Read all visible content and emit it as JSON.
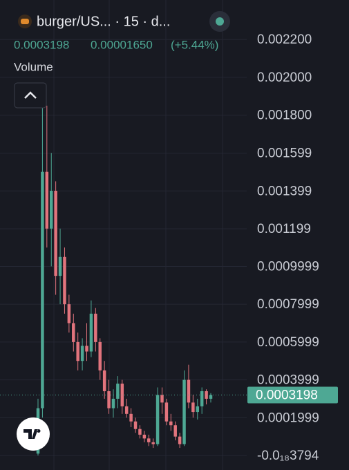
{
  "header": {
    "symbol": "burger/US... · 15 · d...",
    "change": "0.00001650",
    "change_pct": "(+5.44%)",
    "indicator": "Volume"
  },
  "chart_data": {
    "type": "candlestick",
    "last_price": 0.0003198,
    "up_color": "#4ea894",
    "down_color": "#e2747d",
    "grid": true,
    "ylim": [
      -7.68e-05,
      0.002409
    ],
    "yticks": [
      {
        "value": 0.0022,
        "label": "0.002200"
      },
      {
        "value": 0.002,
        "label": "0.002000"
      },
      {
        "value": 0.0018,
        "label": "0.001800"
      },
      0.001599,
      0.001399,
      0.001199,
      0.0009999,
      0.0007999,
      0.0005999,
      0.0003999,
      0.0001999,
      {
        "value": -3.794e-19,
        "label": "-0.0₁₈3794"
      }
    ],
    "open": [
      1e-05,
      0.00025,
      0.0015,
      0.0012,
      0.0014,
      0.00095,
      0.00105,
      0.0008,
      0.0007,
      0.0006,
      0.0005,
      0.00058,
      0.00055,
      0.00075,
      0.0006,
      0.00045,
      0.00034,
      0.00025,
      0.0003,
      0.00038,
      0.00026,
      0.00022,
      0.00018,
      0.00014,
      0.00011,
      9e-05,
      7e-05,
      6e-05,
      0.00032,
      0.00028,
      0.00018,
      0.00016,
      0.0001,
      6e-05,
      0.0004,
      0.00028,
      0.00023,
      0.00026,
      0.00034,
      0.0003
    ],
    "high": [
      0.0003,
      0.0019,
      0.00185,
      0.0016,
      0.00145,
      0.0012,
      0.0011,
      0.00085,
      0.00075,
      0.00065,
      0.00062,
      0.0007,
      0.00082,
      0.00078,
      0.00062,
      0.0005,
      0.0004,
      0.00035,
      0.00042,
      0.0004,
      0.0003,
      0.00025,
      0.0002,
      0.00016,
      0.00013,
      0.00011,
      9e-05,
      0.00036,
      0.00036,
      0.0003,
      0.00022,
      0.00018,
      0.00012,
      0.00045,
      0.00048,
      0.00032,
      0.0003,
      0.00036,
      0.00035,
      0.00033
    ],
    "low": [
      0,
      0.0002,
      0.0011,
      0.001,
      0.00085,
      0.0008,
      0.00075,
      0.00065,
      0.00055,
      0.00045,
      0.00045,
      0.0005,
      0.00052,
      0.00055,
      0.0004,
      0.0003,
      0.00022,
      0.0002,
      0.00025,
      0.00022,
      0.0002,
      0.00015,
      0.00012,
      9e-05,
      7e-05,
      5e-05,
      4e-05,
      5e-05,
      0.00022,
      0.00016,
      0.00013,
      8e-05,
      4e-05,
      5e-05,
      0.00025,
      0.0002,
      0.00019,
      0.00022,
      0.00027,
      0.00028
    ],
    "close": [
      0.00025,
      0.0015,
      0.0012,
      0.0014,
      0.00095,
      0.00105,
      0.0008,
      0.0007,
      0.0006,
      0.0005,
      0.00058,
      0.00055,
      0.00075,
      0.0006,
      0.00045,
      0.00034,
      0.00025,
      0.0003,
      0.00038,
      0.00026,
      0.00022,
      0.00018,
      0.00014,
      0.00011,
      9e-05,
      7e-05,
      6e-05,
      0.00032,
      0.00028,
      0.00018,
      0.00016,
      0.0001,
      6e-05,
      0.0004,
      0.00028,
      0.00023,
      0.00026,
      0.00034,
      0.0003,
      0.0003198
    ]
  }
}
